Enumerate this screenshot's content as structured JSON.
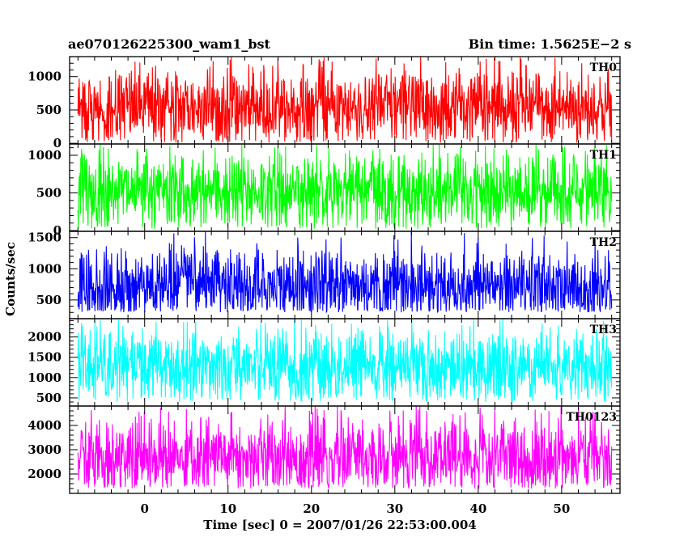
{
  "header": {
    "left": "ae070126225300_wam1_bst",
    "right": "Bin time: 1.5625E−2 s"
  },
  "xlabel": "Time [sec] 0 = 2007/01/26 22:53:00.004",
  "ylabel": "Counts/sec",
  "chart_data": {
    "type": "line",
    "title": "ae070126225300_wam1_bst",
    "bin_time_label": "Bin time: 1.5625E−2 s",
    "xlabel": "Time [sec] 0 = 2007/01/26 22:53:00.004",
    "ylabel": "Counts/sec",
    "xlim": [
      -9,
      57
    ],
    "x_range_data": [
      -8,
      56
    ],
    "x_ticks": [
      0,
      10,
      20,
      30,
      40,
      50
    ],
    "panels": [
      {
        "name": "TH0",
        "color": "#ff0000",
        "ylim": [
          -10,
          1300
        ],
        "y_ticks": [
          0,
          500,
          1000
        ],
        "mean": 540,
        "min": 10,
        "max": 1300
      },
      {
        "name": "TH1",
        "color": "#00ff00",
        "ylim": [
          -10,
          1150
        ],
        "y_ticks": [
          0,
          500,
          1000
        ],
        "mean": 520,
        "min": 20,
        "max": 1150
      },
      {
        "name": "TH2",
        "color": "#0000ff",
        "ylim": [
          200,
          1600
        ],
        "y_ticks": [
          500,
          1000,
          1500
        ],
        "mean": 720,
        "min": 300,
        "max": 1600
      },
      {
        "name": "TH3",
        "color": "#00ffff",
        "ylim": [
          300,
          2450
        ],
        "y_ticks": [
          500,
          1000,
          1500,
          2000
        ],
        "mean": 1250,
        "min": 400,
        "max": 2450
      },
      {
        "name": "TH0123",
        "color": "#ff00ff",
        "ylim": [
          1200,
          4800
        ],
        "y_ticks": [
          2000,
          3000,
          4000
        ],
        "mean": 2700,
        "min": 1400,
        "max": 4800
      }
    ]
  }
}
